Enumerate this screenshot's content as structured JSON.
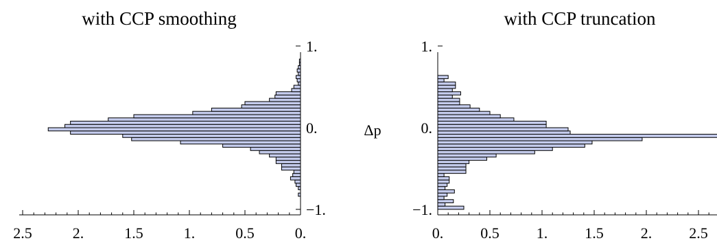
{
  "chart_data": [
    {
      "type": "bar",
      "orientation": "horizontal",
      "title": "with CCP smoothing",
      "xlabel": "",
      "ylabel": "",
      "x_direction": "reversed",
      "y_axis_side": "right",
      "xlim": [
        0,
        2.5
      ],
      "ylim": [
        -1,
        1
      ],
      "xticks": [
        "2.5",
        "2.",
        "1.5",
        "1.",
        "0.5",
        "0."
      ],
      "yticks": [
        "1.",
        "0.",
        "−1."
      ],
      "bin_width": 0.04,
      "bins": [
        {
          "y0": -0.84,
          "value": 0.02
        },
        {
          "y0": -0.76,
          "value": 0.02
        },
        {
          "y0": -0.72,
          "value": 0.04
        },
        {
          "y0": -0.68,
          "value": 0.05
        },
        {
          "y0": -0.64,
          "value": 0.09
        },
        {
          "y0": -0.6,
          "value": 0.07
        },
        {
          "y0": -0.56,
          "value": 0.06
        },
        {
          "y0": -0.52,
          "value": 0.17
        },
        {
          "y0": -0.48,
          "value": 0.17
        },
        {
          "y0": -0.44,
          "value": 0.22
        },
        {
          "y0": -0.4,
          "value": 0.22
        },
        {
          "y0": -0.36,
          "value": 0.28
        },
        {
          "y0": -0.32,
          "value": 0.37
        },
        {
          "y0": -0.28,
          "value": 0.45
        },
        {
          "y0": -0.24,
          "value": 0.7
        },
        {
          "y0": -0.2,
          "value": 1.08
        },
        {
          "y0": -0.16,
          "value": 1.52
        },
        {
          "y0": -0.12,
          "value": 1.6
        },
        {
          "y0": -0.08,
          "value": 2.07
        },
        {
          "y0": -0.04,
          "value": 2.27
        },
        {
          "y0": 0.0,
          "value": 2.12
        },
        {
          "y0": 0.04,
          "value": 2.07
        },
        {
          "y0": 0.08,
          "value": 1.73
        },
        {
          "y0": 0.12,
          "value": 1.5
        },
        {
          "y0": 0.16,
          "value": 0.97
        },
        {
          "y0": 0.2,
          "value": 0.8
        },
        {
          "y0": 0.24,
          "value": 0.53
        },
        {
          "y0": 0.28,
          "value": 0.5
        },
        {
          "y0": 0.32,
          "value": 0.28
        },
        {
          "y0": 0.36,
          "value": 0.23
        },
        {
          "y0": 0.4,
          "value": 0.22
        },
        {
          "y0": 0.44,
          "value": 0.08
        },
        {
          "y0": 0.48,
          "value": 0.06
        },
        {
          "y0": 0.52,
          "value": 0.02
        },
        {
          "y0": 0.56,
          "value": 0.03
        },
        {
          "y0": 0.6,
          "value": 0.04
        },
        {
          "y0": 0.64,
          "value": 0.02
        },
        {
          "y0": 0.68,
          "value": 0.03
        },
        {
          "y0": 0.72,
          "value": 0.02
        },
        {
          "y0": 0.76,
          "value": 0.01
        },
        {
          "y0": 0.8,
          "value": 0.01
        }
      ]
    },
    {
      "type": "bar",
      "orientation": "horizontal",
      "title": "with CCP truncation",
      "xlabel": "",
      "ylabel": "Δp",
      "x_direction": "normal",
      "y_axis_side": "left",
      "xlim": [
        0,
        2.8
      ],
      "ylim": [
        -1,
        1
      ],
      "xticks": [
        "0.",
        "0.5",
        "1.",
        "1.5",
        "2.",
        "2.5"
      ],
      "yticks": [
        "1.",
        "0.",
        "−1."
      ],
      "bin_width": 0.04,
      "bins": [
        {
          "y0": -1.0,
          "value": 0.25
        },
        {
          "y0": -0.96,
          "value": 0.07
        },
        {
          "y0": -0.92,
          "value": 0.15
        },
        {
          "y0": -0.88,
          "value": 0.06
        },
        {
          "y0": -0.84,
          "value": 0.09
        },
        {
          "y0": -0.8,
          "value": 0.16
        },
        {
          "y0": -0.76,
          "value": 0.07
        },
        {
          "y0": -0.72,
          "value": 0.09
        },
        {
          "y0": -0.68,
          "value": 0.11
        },
        {
          "y0": -0.64,
          "value": 0.11
        },
        {
          "y0": -0.6,
          "value": 0.06
        },
        {
          "y0": -0.56,
          "value": 0.27
        },
        {
          "y0": -0.52,
          "value": 0.27
        },
        {
          "y0": -0.48,
          "value": 0.27
        },
        {
          "y0": -0.44,
          "value": 0.3
        },
        {
          "y0": -0.4,
          "value": 0.47
        },
        {
          "y0": -0.36,
          "value": 0.56
        },
        {
          "y0": -0.32,
          "value": 0.93
        },
        {
          "y0": -0.28,
          "value": 1.1
        },
        {
          "y0": -0.24,
          "value": 1.41
        },
        {
          "y0": -0.2,
          "value": 1.48
        },
        {
          "y0": -0.16,
          "value": 1.96
        },
        {
          "y0": -0.12,
          "value": 2.8
        },
        {
          "y0": -0.08,
          "value": 1.27
        },
        {
          "y0": -0.04,
          "value": 1.25
        },
        {
          "y0": 0.0,
          "value": 1.04
        },
        {
          "y0": 0.04,
          "value": 1.04
        },
        {
          "y0": 0.08,
          "value": 0.73
        },
        {
          "y0": 0.12,
          "value": 0.6
        },
        {
          "y0": 0.16,
          "value": 0.5
        },
        {
          "y0": 0.2,
          "value": 0.4
        },
        {
          "y0": 0.24,
          "value": 0.31
        },
        {
          "y0": 0.28,
          "value": 0.21
        },
        {
          "y0": 0.32,
          "value": 0.21
        },
        {
          "y0": 0.36,
          "value": 0.14
        },
        {
          "y0": 0.4,
          "value": 0.22
        },
        {
          "y0": 0.44,
          "value": 0.14
        },
        {
          "y0": 0.48,
          "value": 0.17
        },
        {
          "y0": 0.52,
          "value": 0.17
        },
        {
          "y0": 0.56,
          "value": 0.06
        },
        {
          "y0": 0.6,
          "value": 0.1
        }
      ]
    }
  ],
  "colors": {
    "bar_fill": "#c4cbec",
    "bar_stroke": "#000000"
  }
}
